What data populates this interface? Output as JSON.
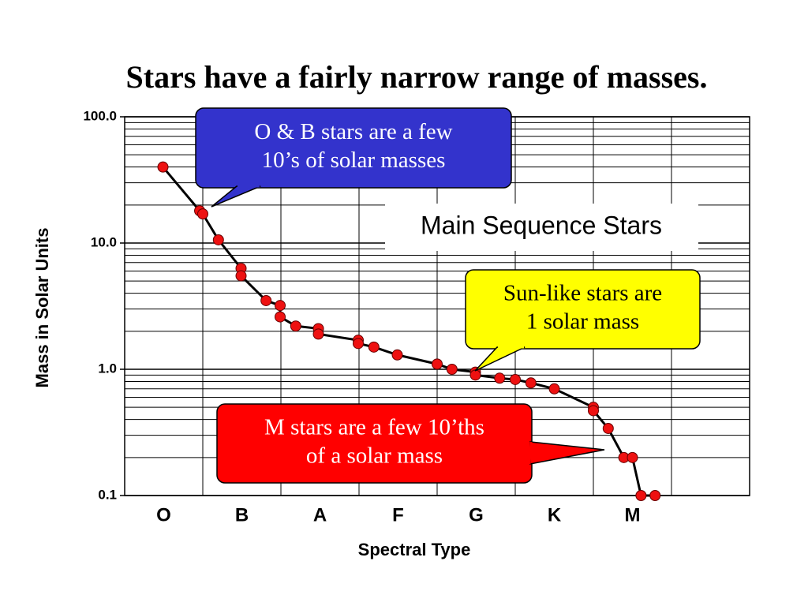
{
  "chart_data": {
    "type": "scatter",
    "title": "Stars have a fairly narrow range of masses.",
    "x_label": "Spectral Type",
    "y_label": "Mass in Solar Units",
    "categories": [
      "O",
      "B",
      "A",
      "F",
      "G",
      "K",
      "M",
      null
    ],
    "xlim": [
      0,
      8
    ],
    "ylim": [
      0.1,
      100
    ],
    "log_y": true,
    "minor_grid": true,
    "yticks": [
      0.1,
      {
        "value": 1,
        "label": "1.0"
      },
      {
        "value": 10,
        "label": "10.0"
      },
      {
        "value": 100,
        "label": "100.0"
      }
    ],
    "series": [
      {
        "name": "Main Sequence Stars",
        "color": "#ee1111",
        "line_color": "#000000",
        "x": [
          0.49,
          0.96,
          1.0,
          1.2,
          1.49,
          1.49,
          1.81,
          1.99,
          1.99,
          2.19,
          2.48,
          2.48,
          2.99,
          2.99,
          3.19,
          3.49,
          4.0,
          4.19,
          4.49,
          4.49,
          4.8,
          5.0,
          5.2,
          5.5,
          6.0,
          6.0,
          6.19,
          6.39,
          6.5,
          6.61,
          6.79
        ],
        "values": [
          40,
          18,
          17,
          10.6,
          6.3,
          5.5,
          3.5,
          3.2,
          2.6,
          2.2,
          2.1,
          1.9,
          1.7,
          1.6,
          1.5,
          1.3,
          1.1,
          1.0,
          0.95,
          0.9,
          0.85,
          0.83,
          0.78,
          0.7,
          0.5,
          0.47,
          0.34,
          0.2,
          0.2,
          0.1,
          0.1
        ]
      }
    ],
    "annotations": [
      {
        "lines": [
          "O & B stars are a few",
          "10’s of solar masses"
        ],
        "color": "#3333cc",
        "text_color": "#ffffff"
      },
      {
        "lines": [
          "Sun-like stars are",
          "1 solar mass"
        ],
        "color": "#ffff00",
        "text_color": "#000000"
      },
      {
        "lines": [
          "M stars are a few 10’ths",
          "of a solar mass"
        ],
        "color": "#ff0000",
        "text_color": "#ffffff"
      }
    ]
  }
}
